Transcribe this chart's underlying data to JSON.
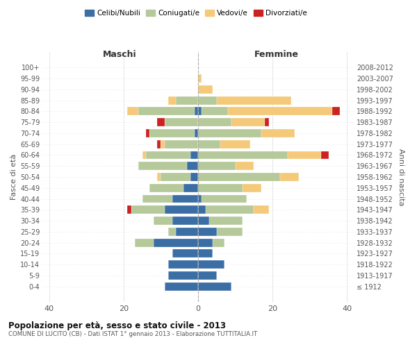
{
  "age_groups": [
    "100+",
    "95-99",
    "90-94",
    "85-89",
    "80-84",
    "75-79",
    "70-74",
    "65-69",
    "60-64",
    "55-59",
    "50-54",
    "45-49",
    "40-44",
    "35-39",
    "30-34",
    "25-29",
    "20-24",
    "15-19",
    "10-14",
    "5-9",
    "0-4"
  ],
  "birth_years": [
    "≤ 1912",
    "1913-1917",
    "1918-1922",
    "1923-1927",
    "1928-1932",
    "1933-1937",
    "1938-1942",
    "1943-1947",
    "1948-1952",
    "1953-1957",
    "1958-1962",
    "1963-1967",
    "1968-1972",
    "1973-1977",
    "1978-1982",
    "1983-1987",
    "1988-1992",
    "1993-1997",
    "1998-2002",
    "2003-2007",
    "2008-2012"
  ],
  "colors": {
    "celibi": "#3a6ea5",
    "coniugati": "#b5c99a",
    "vedovi": "#f5c97a",
    "divorziati": "#cc2222"
  },
  "maschi": {
    "celibi": [
      0,
      0,
      0,
      0,
      1,
      0,
      1,
      0,
      2,
      3,
      2,
      4,
      7,
      9,
      7,
      6,
      12,
      7,
      8,
      8,
      9
    ],
    "coniugati": [
      0,
      0,
      0,
      6,
      15,
      9,
      12,
      9,
      12,
      13,
      8,
      9,
      8,
      9,
      5,
      2,
      5,
      0,
      0,
      0,
      0
    ],
    "vedovi": [
      0,
      0,
      0,
      2,
      3,
      0,
      0,
      1,
      1,
      0,
      1,
      0,
      0,
      0,
      0,
      0,
      0,
      0,
      0,
      0,
      0
    ],
    "divorziati": [
      0,
      0,
      0,
      0,
      0,
      2,
      1,
      1,
      0,
      0,
      0,
      0,
      0,
      1,
      0,
      0,
      0,
      0,
      0,
      0,
      0
    ]
  },
  "femmine": {
    "celibi": [
      0,
      0,
      0,
      0,
      1,
      0,
      0,
      0,
      0,
      0,
      0,
      0,
      1,
      2,
      3,
      5,
      4,
      4,
      7,
      5,
      9
    ],
    "coniugati": [
      0,
      0,
      0,
      5,
      7,
      9,
      17,
      6,
      24,
      10,
      22,
      12,
      12,
      13,
      9,
      7,
      3,
      0,
      0,
      0,
      0
    ],
    "vedovi": [
      0,
      1,
      4,
      20,
      28,
      9,
      9,
      8,
      9,
      5,
      5,
      5,
      0,
      4,
      0,
      0,
      0,
      0,
      0,
      0,
      0
    ],
    "divorziati": [
      0,
      0,
      0,
      0,
      2,
      1,
      0,
      0,
      2,
      0,
      0,
      0,
      0,
      0,
      0,
      0,
      0,
      0,
      0,
      0,
      0
    ]
  },
  "title": "Popolazione per età, sesso e stato civile - 2013",
  "subtitle": "COMUNE DI LUCITO (CB) - Dati ISTAT 1° gennaio 2013 - Elaborazione TUTTITALIA.IT",
  "xlabel_left": "Maschi",
  "xlabel_right": "Femmine",
  "ylabel_left": "Fasce di età",
  "ylabel_right": "Anni di nascita",
  "xlim": 42,
  "legend_labels": [
    "Celibi/Nubili",
    "Coniugati/e",
    "Vedovi/e",
    "Divorziati/e"
  ]
}
